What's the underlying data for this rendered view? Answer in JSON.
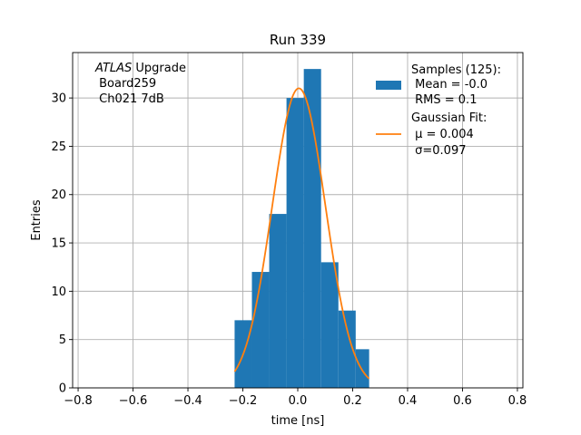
{
  "chart_data": {
    "type": "bar",
    "title": "Run 339",
    "xlabel": "time [ns]",
    "ylabel": "Entries",
    "xlim": [
      -0.82,
      0.82
    ],
    "ylim": [
      0,
      34.7
    ],
    "grid": true,
    "x_ticks": [
      -0.8,
      -0.6,
      -0.4,
      -0.2,
      0.0,
      0.2,
      0.4,
      0.6,
      0.8
    ],
    "x_tick_labels": [
      "−0.8",
      "−0.6",
      "−0.4",
      "−0.2",
      "0.0",
      "0.2",
      "0.4",
      "0.6",
      "0.8"
    ],
    "y_ticks": [
      0,
      5,
      10,
      15,
      20,
      25,
      30
    ],
    "y_tick_labels": [
      "0",
      "5",
      "10",
      "15",
      "20",
      "25",
      "30"
    ],
    "histogram": {
      "name": "Samples (125):",
      "color": "#1f77b4",
      "bin_edges": [
        -0.23,
        -0.167,
        -0.104,
        -0.041,
        0.022,
        0.085,
        0.148,
        0.211,
        0.26
      ],
      "counts": [
        7,
        12,
        18,
        30,
        33,
        13,
        8,
        4
      ]
    },
    "fit": {
      "name": "Gaussian Fit:",
      "color": "#ff7f0e",
      "amplitude": 31,
      "mu": 0.004,
      "sigma": 0.097,
      "x_range": [
        -0.23,
        0.26
      ]
    },
    "annotation": {
      "italic": "ATLAS",
      "rest": " Upgrade",
      "line2": " Board259",
      "line3": " Ch021 7dB"
    },
    "legend": {
      "position": "top-right",
      "samples_title": "Samples (125):",
      "samples_mean": " Mean = -0.0",
      "samples_rms": " RMS = 0.1",
      "fit_title": "Gaussian Fit:",
      "fit_mu": " μ = 0.004",
      "fit_sigma": " σ=0.097"
    }
  }
}
